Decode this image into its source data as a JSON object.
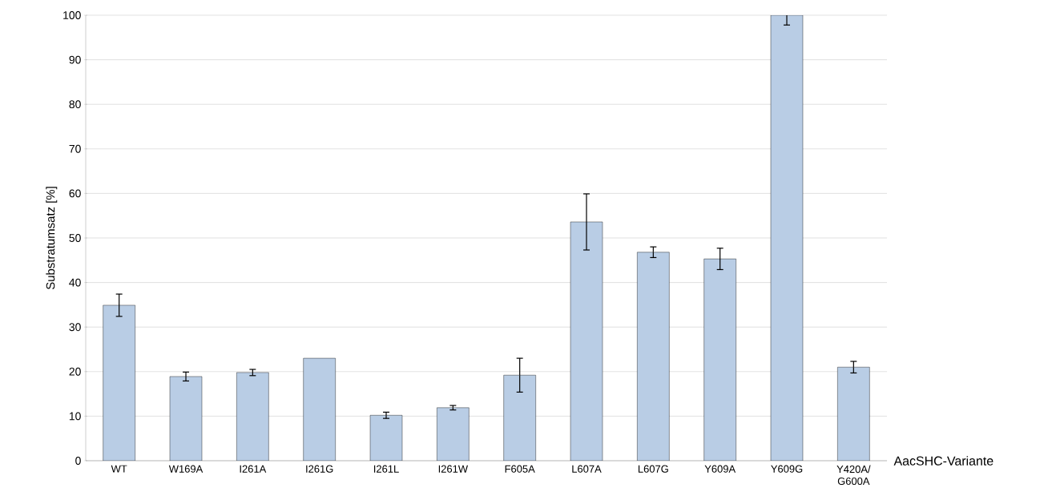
{
  "chart_data": {
    "type": "bar",
    "ylabel": "Substratumsatz [%]",
    "xlabel": "AacSHC-Variante",
    "categories": [
      "WT",
      "W169A",
      "I261A",
      "I261G",
      "I261L",
      "I261W",
      "F605A",
      "L607A",
      "L607G",
      "Y609A",
      "Y609G",
      "Y420A/ G600A"
    ],
    "values": [
      34.9,
      18.9,
      19.8,
      23,
      10.2,
      11.9,
      19.2,
      53.6,
      46.8,
      45.3,
      100,
      21
    ],
    "errors": [
      2.5,
      1,
      0.7,
      null,
      0.7,
      0.5,
      3.8,
      6.3,
      1.2,
      2.4,
      2.2,
      1.3
    ],
    "color": "#b9cde5",
    "ylim": [
      0,
      100
    ],
    "yticks": [
      0,
      10,
      20,
      30,
      40,
      50,
      60,
      70,
      80,
      90,
      100
    ],
    "grid": "y"
  }
}
